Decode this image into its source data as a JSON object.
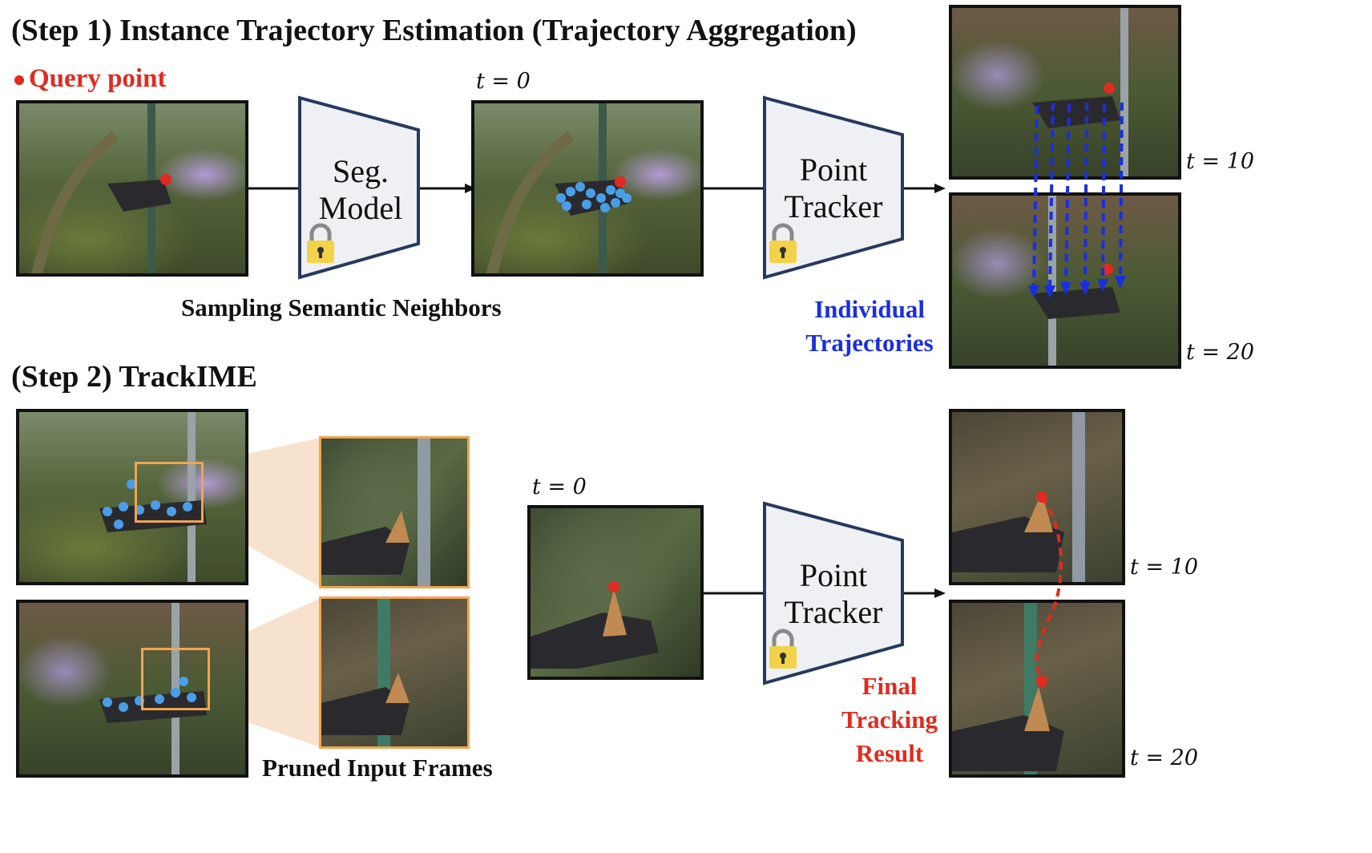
{
  "step1": {
    "title": "(Step 1) Instance Trajectory Estimation (Trajectory Aggregation)",
    "query_point_label": "Query point",
    "sampling_caption": "Sampling Semantic Neighbors",
    "trajectories_caption_line1": "Individual",
    "trajectories_caption_line2": "Trajectories",
    "t0_label": "t = 0",
    "t10_label": "t = 10",
    "t20_label": "t = 20"
  },
  "step2": {
    "title": "(Step 2) TrackIME",
    "pruned_caption": "Pruned Input Frames",
    "final_line1": "Final",
    "final_line2": "Tracking",
    "final_line3": "Result",
    "t0_label": "t = 0",
    "t10_label": "t = 10",
    "t20_label": "t = 20"
  },
  "modules": {
    "seg_line1": "Seg.",
    "seg_line2": "Model",
    "tracker_line1": "Point",
    "tracker_line2": "Tracker"
  },
  "colors": {
    "query_red": "#e02b20",
    "neighbor_blue": "#4a9ee8",
    "trajectory_blue": "#1a2ee0",
    "final_red": "#e02b20",
    "orange_box": "#f0a552",
    "module_fill": "#eef0f3",
    "module_stroke": "#263a5e"
  },
  "icons": [
    "lock-icon",
    "arrow-icon",
    "query-point-icon"
  ]
}
